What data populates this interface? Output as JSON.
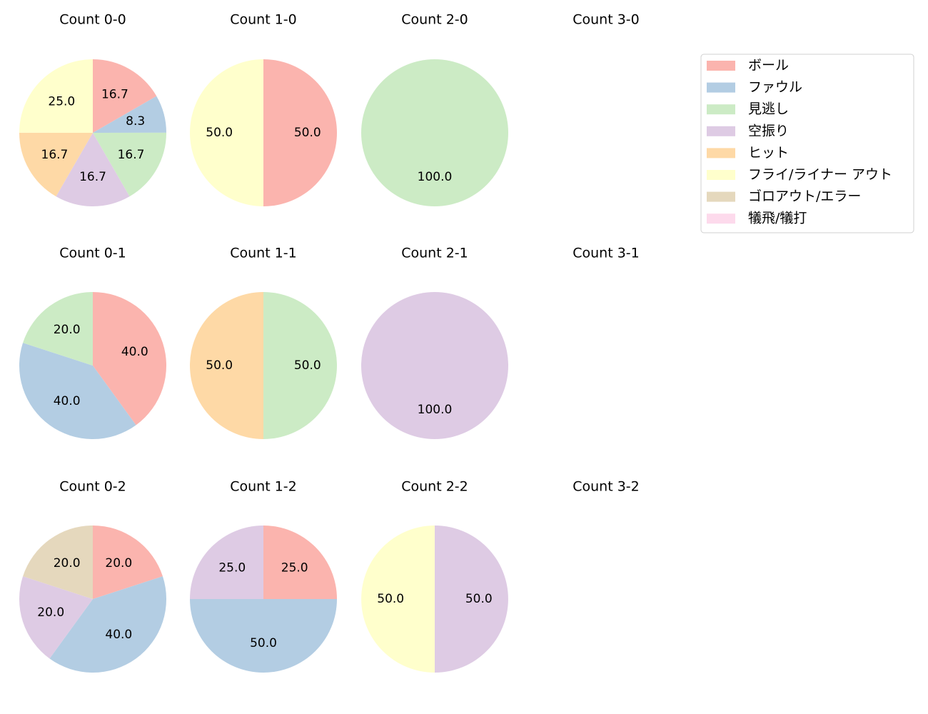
{
  "chart_data": [
    {
      "type": "pie",
      "title": "Count 0-0",
      "values": [
        16.7,
        8.3,
        16.7,
        16.7,
        16.7,
        25.0,
        null,
        null
      ],
      "value_labels": [
        "16.7",
        "8.3",
        "16.7",
        "16.7",
        "16.7",
        "25.0",
        null,
        null
      ]
    },
    {
      "type": "pie",
      "title": "Count 1-0",
      "values": [
        50,
        null,
        null,
        null,
        null,
        50,
        null,
        null
      ],
      "value_labels": [
        "50.0",
        null,
        null,
        null,
        null,
        "50.0",
        null,
        null
      ]
    },
    {
      "type": "pie",
      "title": "Count 2-0",
      "values": [
        null,
        null,
        100,
        null,
        null,
        null,
        null,
        null
      ],
      "value_labels": [
        null,
        null,
        "100.0",
        null,
        null,
        null,
        null,
        null
      ]
    },
    {
      "type": "pie",
      "title": "Count 3-0"
    },
    {
      "type": "pie",
      "title": "Count 0-1",
      "values": [
        40,
        40,
        20,
        null,
        null,
        null,
        null,
        null
      ],
      "value_labels": [
        "40.0",
        "40.0",
        "20.0",
        null,
        null,
        null,
        null,
        null
      ]
    },
    {
      "type": "pie",
      "title": "Count 1-1",
      "values": [
        null,
        null,
        50,
        null,
        50,
        null,
        null,
        null
      ],
      "value_labels": [
        null,
        null,
        "50.0",
        null,
        "50.0",
        null,
        null,
        null
      ]
    },
    {
      "type": "pie",
      "title": "Count 2-1",
      "values": [
        null,
        null,
        null,
        100,
        null,
        null,
        null,
        null
      ],
      "value_labels": [
        null,
        null,
        null,
        "100.0",
        null,
        null,
        null,
        null
      ]
    },
    {
      "type": "pie",
      "title": "Count 3-1"
    },
    {
      "type": "pie",
      "title": "Count 0-2",
      "values": [
        20,
        40,
        null,
        20,
        null,
        null,
        20,
        null
      ],
      "value_labels": [
        "20.0",
        "40.0",
        null,
        "20.0",
        null,
        null,
        "20.0",
        null
      ]
    },
    {
      "type": "pie",
      "title": "Count 1-2",
      "values": [
        25,
        50,
        null,
        25,
        null,
        null,
        null,
        null
      ],
      "value_labels": [
        "25.0",
        "50.0",
        null,
        "25.0",
        null,
        null,
        null,
        null
      ]
    },
    {
      "type": "pie",
      "title": "Count 2-2",
      "values": [
        null,
        null,
        null,
        50,
        null,
        50,
        null,
        null
      ],
      "value_labels": [
        null,
        null,
        null,
        "50.0",
        null,
        "50.0",
        null,
        null
      ]
    },
    {
      "type": "pie",
      "title": "Count 3-2"
    }
  ],
  "legend": {
    "labels": [
      "ボール",
      "ファウル",
      "見逃し",
      "空振り",
      "ヒット",
      "フライ/ライナー アウト",
      "ゴロアウト/エラー",
      "犠飛/犠打"
    ],
    "colors": [
      "#fbb4ae",
      "#b3cde3",
      "#ccebc5",
      "#decbe4",
      "#fed9a6",
      "#ffffcc",
      "#e5d8bd",
      "#fddaec"
    ],
    "loc": "upper right"
  }
}
